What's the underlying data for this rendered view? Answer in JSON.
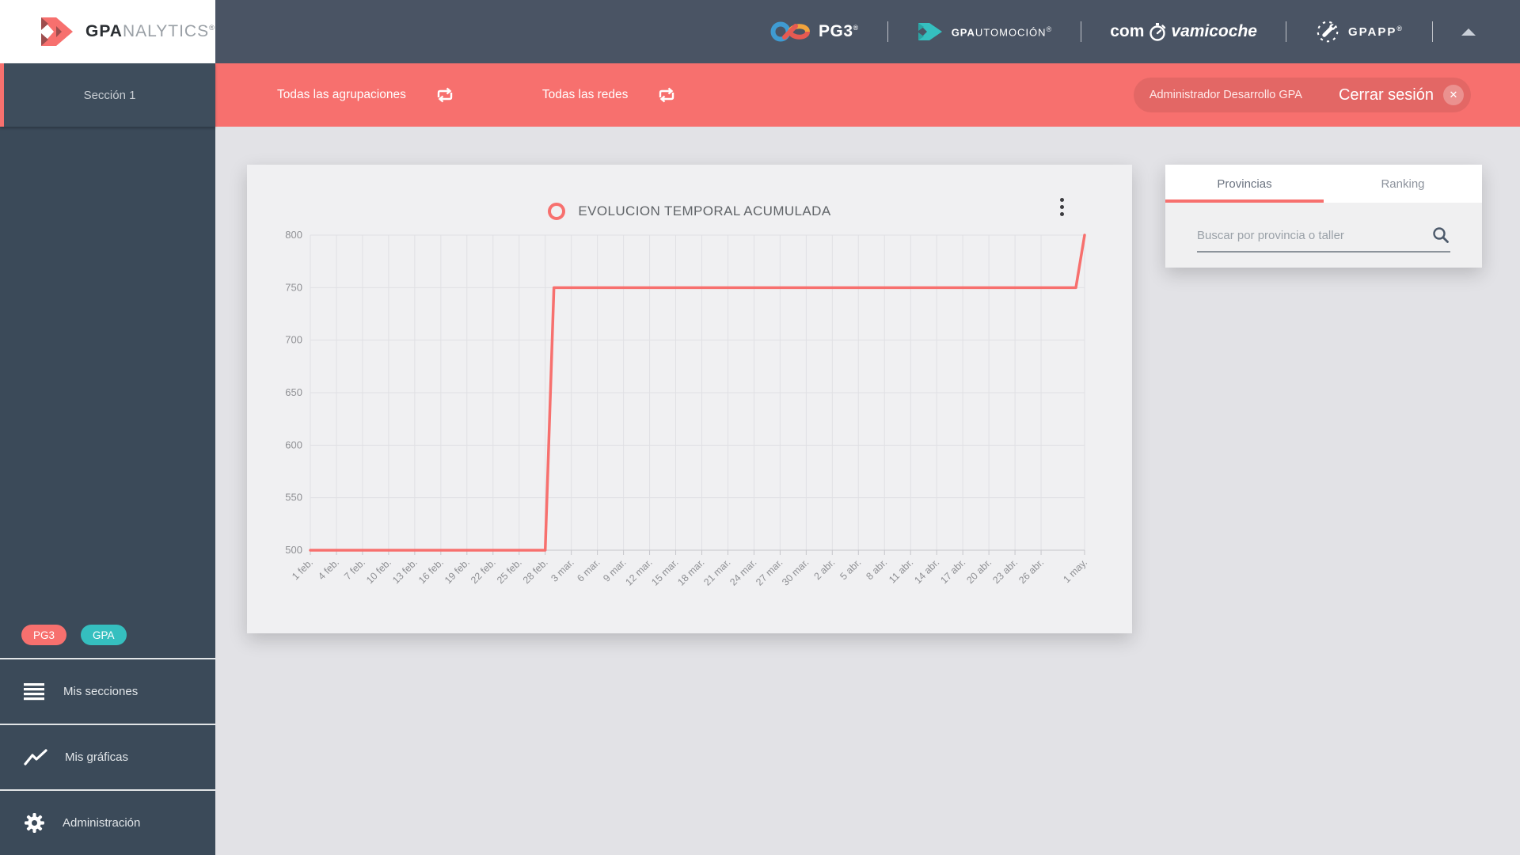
{
  "sidebar": {
    "logo": {
      "bold": "GPA",
      "light": "NALYTICS",
      "reg": "®"
    },
    "section": {
      "label": "Sección 1"
    },
    "badges": [
      {
        "label": "PG3"
      },
      {
        "label": "GPA"
      }
    ],
    "items": [
      {
        "label": "Mis secciones"
      },
      {
        "label": "Mis gráficas"
      },
      {
        "label": "Administración"
      }
    ]
  },
  "header": {
    "pg3": {
      "text": "PG3",
      "reg": "®"
    },
    "gpautomocion": {
      "bold": "GPA",
      "rest": "UTOMOCIÓN",
      "reg": "®"
    },
    "comprovamicoche": {
      "left": "com",
      "right": "vamicoche"
    },
    "gpapp": {
      "text": "GPAPP",
      "reg": "®"
    }
  },
  "toolbar": {
    "filters": [
      {
        "label": "Todas las agrupaciones"
      },
      {
        "label": "Todas las redes"
      }
    ],
    "user_label": "Administrador Desarrollo GPA",
    "logout_label": "Cerrar sesión",
    "close_glyph": "✕"
  },
  "panel": {
    "tabs": [
      {
        "label": "Provincias"
      },
      {
        "label": "Ranking"
      }
    ],
    "search_placeholder": "Buscar por provincia o taller"
  },
  "chart_data": {
    "type": "line",
    "title": "EVOLUCION TEMPORAL ACUMULADA",
    "xlabel": "",
    "ylabel": "",
    "ylim": [
      500,
      800
    ],
    "yticks": [
      500,
      550,
      600,
      650,
      700,
      750,
      800
    ],
    "x_tick_labels": [
      "1 feb.",
      "4 feb.",
      "7 feb.",
      "10 feb.",
      "13 feb.",
      "16 feb.",
      "19 feb.",
      "22 feb.",
      "25 feb.",
      "28 feb.",
      "3 mar.",
      "6 mar.",
      "9 mar.",
      "12 mar.",
      "15 mar.",
      "18 mar.",
      "21 mar.",
      "24 mar.",
      "27 mar.",
      "30 mar.",
      "2 abr.",
      "5 abr.",
      "8 abr.",
      "11 abr.",
      "14 abr.",
      "17 abr.",
      "20 abr.",
      "23 abr.",
      "26 abr.",
      "1 may."
    ],
    "x_tick_days": [
      0,
      3,
      6,
      9,
      12,
      15,
      18,
      21,
      24,
      27,
      30,
      33,
      36,
      39,
      42,
      45,
      48,
      51,
      54,
      57,
      60,
      63,
      66,
      69,
      72,
      75,
      78,
      81,
      84,
      89
    ],
    "x_total_days": 89,
    "grid": true,
    "legend_position": "top",
    "series": [
      {
        "name": "EVOLUCION TEMPORAL ACUMULADA",
        "color": "#f7706e",
        "points_day_value": [
          [
            0,
            500
          ],
          [
            27,
            500
          ],
          [
            28,
            750
          ],
          [
            88,
            750
          ],
          [
            89,
            800
          ]
        ]
      }
    ]
  },
  "colors": {
    "accent_red": "#f7706e",
    "teal": "#35bfbf",
    "header_bg": "#4a5464",
    "sidebar_bg": "#3b4a59",
    "card_bg": "#f0f0f2",
    "main_bg": "#e2e2e6"
  }
}
